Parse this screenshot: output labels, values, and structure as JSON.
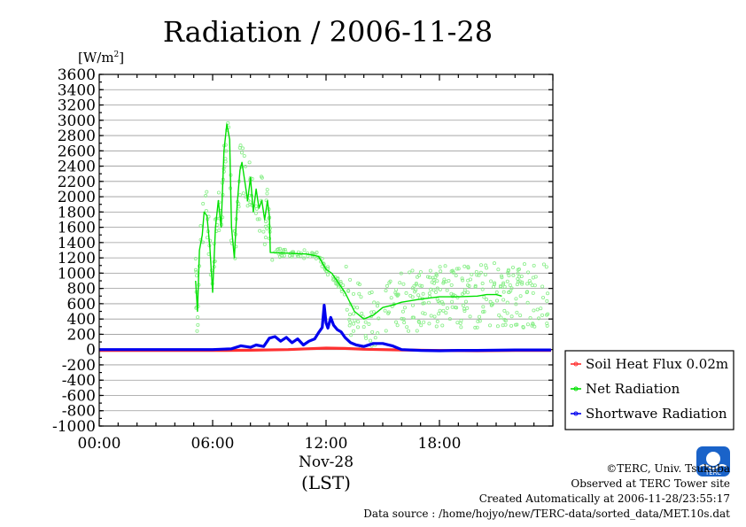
{
  "chart_data": {
    "type": "line",
    "title": "Radiation / 2006-11-28",
    "ylabel": "[W/m",
    "ylabel_sup": "2",
    "ylabel_close": "]",
    "ylim": [
      -1000,
      3600
    ],
    "yticks": [
      -1000,
      -800,
      -600,
      -400,
      -200,
      0,
      200,
      400,
      600,
      800,
      1000,
      1200,
      1400,
      1600,
      1800,
      2000,
      2200,
      2400,
      2600,
      2800,
      3000,
      3200,
      3400,
      3600
    ],
    "xlim": [
      0,
      24
    ],
    "xticks": [
      {
        "v": 0,
        "label": "00:00"
      },
      {
        "v": 6,
        "label": "06:00"
      },
      {
        "v": 12,
        "label": "12:00"
      },
      {
        "v": 18,
        "label": "18:00"
      }
    ],
    "xdate": "Nov-28",
    "xlabel": "(LST)",
    "grid": true,
    "legend_placement": "right",
    "series": [
      {
        "name": "Soil Heat Flux 0.02m",
        "color": "#ff3030",
        "x": [
          0,
          2,
          4,
          6,
          8,
          10,
          11,
          12,
          13,
          14,
          16,
          18,
          20,
          22,
          23.9
        ],
        "y": [
          -10,
          -10,
          -12,
          -12,
          -8,
          0,
          10,
          20,
          15,
          5,
          -5,
          -12,
          -15,
          -12,
          -10
        ]
      },
      {
        "name": "Net Radiation",
        "color": "#00e000",
        "scatter_color": "#88ee88",
        "x": [
          5.1,
          5.2,
          5.3,
          5.45,
          5.55,
          5.7,
          5.85,
          6.0,
          6.15,
          6.3,
          6.45,
          6.6,
          6.75,
          6.9,
          7.0,
          7.15,
          7.3,
          7.45,
          7.55,
          7.7,
          7.85,
          8.0,
          8.15,
          8.3,
          8.45,
          8.6,
          8.75,
          8.9,
          9.0,
          9.05,
          11.0,
          11.6,
          12.0,
          12.3,
          13.0,
          13.5,
          14.0,
          14.5,
          15.0,
          15.5,
          16.0,
          17.0,
          18.0,
          19.0,
          20.0,
          20.5,
          21.0,
          21.3
        ],
        "y": [
          900,
          500,
          1300,
          1500,
          1800,
          1750,
          1350,
          750,
          1600,
          1950,
          1600,
          2600,
          2950,
          2750,
          1600,
          1200,
          1900,
          2350,
          2450,
          2200,
          1950,
          2250,
          1800,
          2100,
          1850,
          1950,
          1700,
          1950,
          1750,
          1270,
          1250,
          1220,
          1050,
          1000,
          750,
          500,
          400,
          450,
          550,
          580,
          620,
          660,
          690,
          690,
          700,
          720,
          720,
          700
        ]
      },
      {
        "name": "Shortwave Radiation",
        "color": "#0000ee",
        "x": [
          0,
          5,
          6,
          7,
          7.5,
          8.0,
          8.3,
          8.7,
          9.0,
          9.3,
          9.6,
          9.9,
          10.2,
          10.5,
          10.8,
          11.1,
          11.4,
          11.6,
          11.8,
          11.9,
          12.0,
          12.1,
          12.25,
          12.4,
          12.6,
          12.8,
          13.0,
          13.3,
          13.6,
          14.0,
          14.5,
          15.0,
          15.5,
          16.0,
          17.0,
          18.0,
          19.0,
          20.0,
          21.0,
          22.0,
          23.9
        ],
        "y": [
          0,
          0,
          0,
          10,
          50,
          30,
          60,
          40,
          150,
          170,
          110,
          160,
          90,
          140,
          60,
          110,
          140,
          220,
          290,
          580,
          350,
          280,
          420,
          320,
          260,
          230,
          160,
          90,
          60,
          40,
          80,
          80,
          50,
          0,
          -10,
          -15,
          -10,
          -10,
          -8,
          -5,
          -5
        ]
      }
    ],
    "annotation": "Data source : /home/hojyo/new/TERC-data/sorted_data/MET.10s.dat"
  },
  "logo": {
    "text": "TERC"
  },
  "footer": {
    "copyright": "©TERC, Univ. Tsukuba",
    "observed": "Observed at TERC Tower site",
    "created": "Created Automatically at 2006-11-28/23:55:17"
  }
}
